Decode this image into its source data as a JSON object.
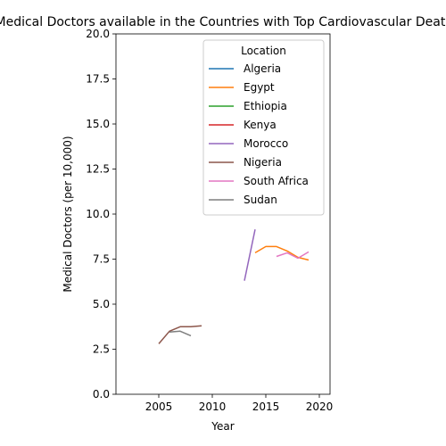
{
  "chart_data": {
    "type": "line",
    "title": "Medical Doctors available in the Countries with Top Cardiovascular Deaths",
    "xlabel": "Year",
    "ylabel": "Medical Doctors (per 10,000)",
    "xlim": [
      2001,
      2021
    ],
    "ylim": [
      0,
      20
    ],
    "xticks": [
      2005,
      2010,
      2015,
      2020
    ],
    "yticks": [
      0.0,
      2.5,
      5.0,
      7.5,
      10.0,
      12.5,
      15.0,
      17.5,
      20.0
    ],
    "xtick_labels": [
      "2005",
      "2010",
      "2015",
      "2020"
    ],
    "ytick_labels": [
      "0.0",
      "2.5",
      "5.0",
      "7.5",
      "10.0",
      "12.5",
      "15.0",
      "17.5",
      "20.0"
    ],
    "grid": false,
    "legend_title": "Location",
    "legend_position": "upper-right",
    "series": [
      {
        "name": "Algeria",
        "color": "#1f77b4",
        "x": [],
        "y": []
      },
      {
        "name": "Egypt",
        "color": "#ff7f0e",
        "x": [
          2014,
          2015,
          2016,
          2017,
          2018,
          2019
        ],
        "y": [
          7.85,
          8.2,
          8.2,
          7.95,
          7.6,
          7.45
        ]
      },
      {
        "name": "Ethiopia",
        "color": "#2ca02c",
        "x": [],
        "y": []
      },
      {
        "name": "Kenya",
        "color": "#d62728",
        "x": [],
        "y": []
      },
      {
        "name": "Morocco",
        "color": "#9467bd",
        "x": [
          2013,
          2014
        ],
        "y": [
          6.3,
          9.15
        ]
      },
      {
        "name": "Nigeria",
        "color": "#8c564b",
        "x": [
          2005,
          2006,
          2007,
          2008,
          2009
        ],
        "y": [
          2.8,
          3.5,
          3.75,
          3.75,
          3.8
        ]
      },
      {
        "name": "South Africa",
        "color": "#e377c2",
        "x": [
          2016,
          2017,
          2018,
          2019
        ],
        "y": [
          7.65,
          7.85,
          7.55,
          7.9
        ]
      },
      {
        "name": "Sudan",
        "color": "#7f7f7f",
        "x": [
          2006,
          2007,
          2008
        ],
        "y": [
          3.45,
          3.5,
          3.25
        ]
      }
    ]
  }
}
